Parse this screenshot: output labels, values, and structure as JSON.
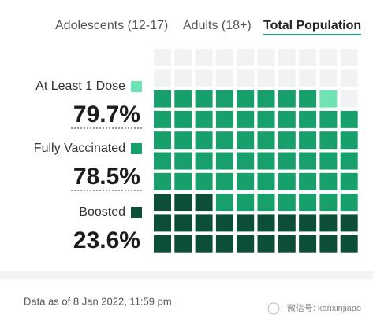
{
  "tabs": [
    "Adolescents (12-17)",
    "Adults (18+)",
    "Total Population"
  ],
  "selected_tab": 2,
  "chart_data": {
    "type": "waffle",
    "series": [
      {
        "name": "At Least 1 Dose",
        "color": "#6fe3b4",
        "values": [
          79.7
        ],
        "value_labels": [
          "79.7%"
        ]
      },
      {
        "name": "Fully Vaccinated",
        "color": "#17a06c",
        "values": [
          78.5
        ],
        "value_labels": [
          "78.5%"
        ]
      },
      {
        "name": "Boosted",
        "color": "#0c4f36",
        "values": [
          23.6
        ],
        "value_labels": [
          "23.6%"
        ]
      }
    ],
    "empty_color": "#f1f2f4"
  },
  "note": "Data as of 8 Jan 2022, 11:59 pm",
  "watermark": "微信号: kanxinjiapo"
}
